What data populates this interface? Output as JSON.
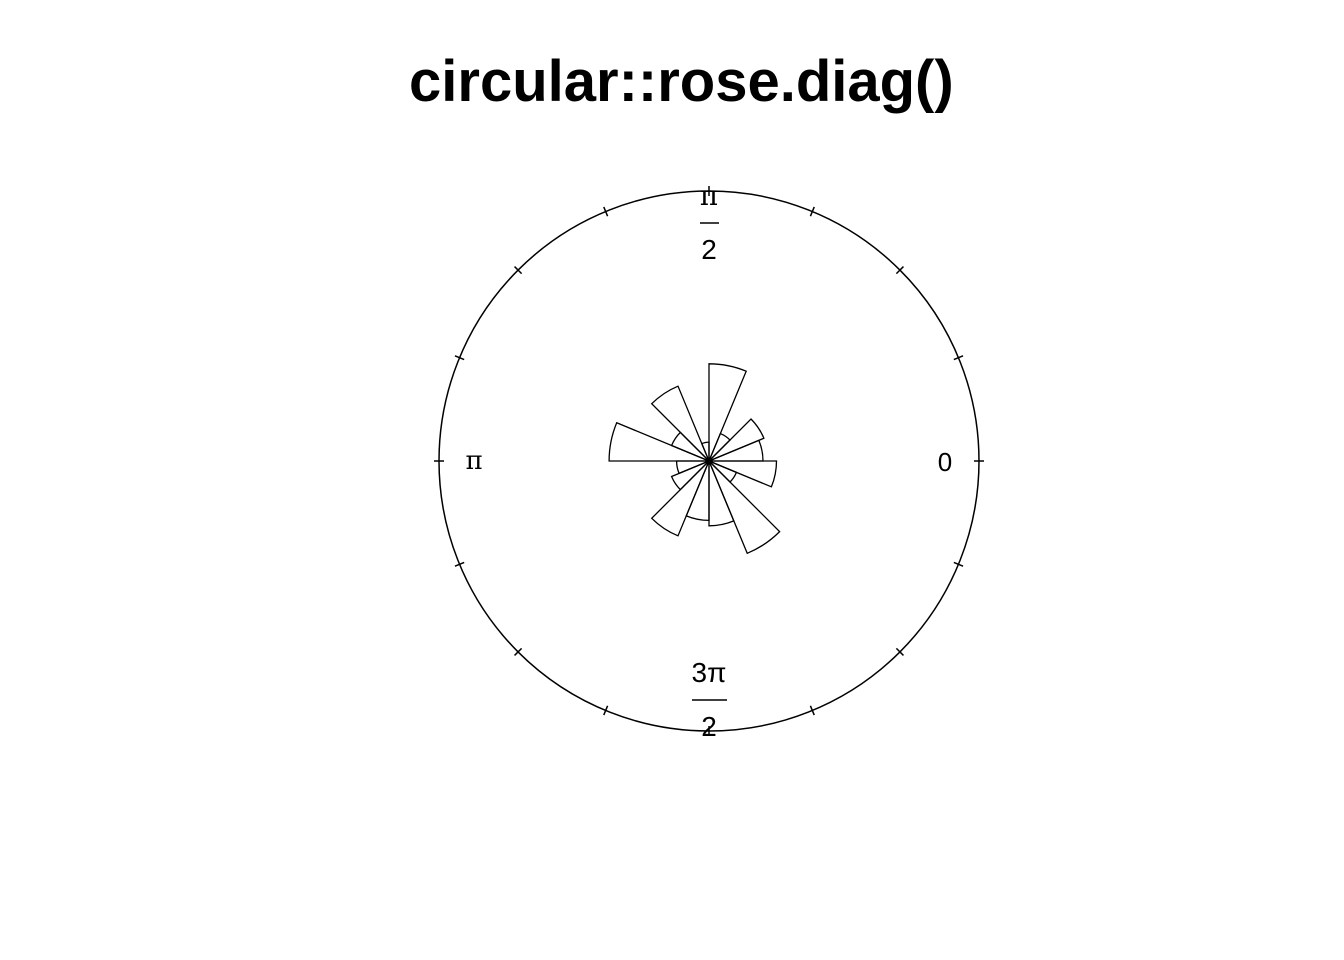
{
  "chart_data": {
    "type": "rose",
    "title": "circular::rose.diag()",
    "bins": 16,
    "bin_width_deg": 22.5,
    "zero_direction": "east",
    "rotation": "counter",
    "radial_scale": "sqrt-proportional",
    "bin_start_deg": [
      0,
      22.5,
      45,
      67.5,
      90,
      112.5,
      135,
      157.5,
      180,
      202.5,
      225,
      247.5,
      270,
      292.5,
      315,
      337.5
    ],
    "values": [
      0.2,
      0.22,
      0.11,
      0.36,
      0.07,
      0.3,
      0.15,
      0.37,
      0.12,
      0.15,
      0.3,
      0.22,
      0.24,
      0.37,
      0.11,
      0.25
    ],
    "axis_labels": {
      "zero": "0",
      "half_pi_num": "π",
      "half_pi_den": "2",
      "pi": "π",
      "three_half_pi_num": "3π",
      "three_half_pi_den": "2"
    },
    "ticks": 16,
    "grid": false
  }
}
